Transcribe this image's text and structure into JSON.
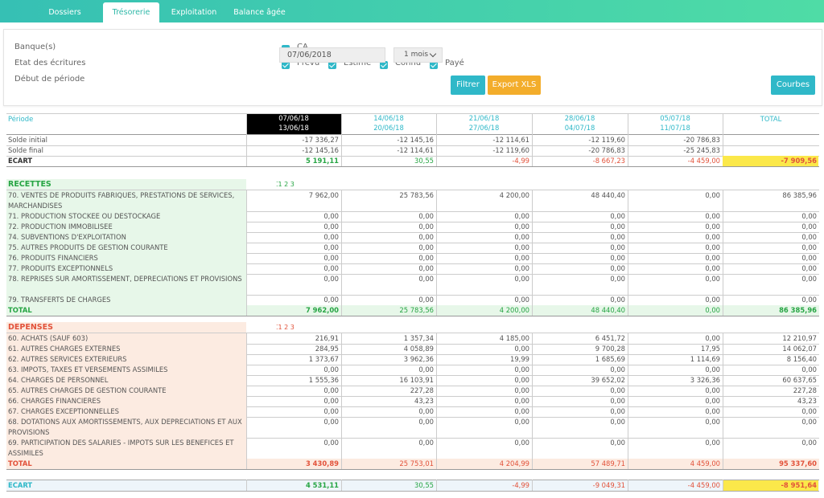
{
  "tabs": [
    {
      "label": "Dossiers",
      "active": false
    },
    {
      "label": "Trésorerie",
      "active": true
    },
    {
      "label": "Exploitation",
      "active": false
    },
    {
      "label": "Balance âgée",
      "active": false
    }
  ],
  "filters": {
    "banks_label": "Banque(s)",
    "bank": "CA",
    "states_label": "Etat des écritures",
    "states": [
      "Prévu",
      "Estimé",
      "Connu",
      "Payé"
    ],
    "start_label": "Début de période",
    "start_value": "07/06/2018",
    "duration_value": "1 mois",
    "filter_button": "Filtrer",
    "export_button": "Export XLS",
    "curves_button": "Courbes"
  },
  "colors": {
    "teal": "#2fb8c8",
    "green": "#27a544",
    "red": "#e2523a",
    "orange": "#f3ad2b",
    "highlight": "#fbe84a",
    "recettes_bg": "#e7f7e9",
    "depenses_bg": "#fcebe1"
  },
  "table": {
    "period_label": "Période",
    "periods": [
      [
        "07/06/18",
        "13/06/18"
      ],
      [
        "14/06/18",
        "20/06/18"
      ],
      [
        "21/06/18",
        "27/06/18"
      ],
      [
        "28/06/18",
        "04/07/18"
      ],
      [
        "05/07/18",
        "11/07/18"
      ]
    ],
    "total_label": "TOTAL",
    "solde_initial": {
      "label": "Solde initial",
      "values": [
        "-17 336,27",
        "-12 145,16",
        "-12 114,61",
        "-12 119,60",
        "-20 786,83",
        ""
      ]
    },
    "solde_final": {
      "label": "Solde final",
      "values": [
        "-12 145,16",
        "-12 114,61",
        "-12 119,60",
        "-20 786,83",
        "-25 245,83",
        ""
      ]
    },
    "ecart_top": {
      "label": "ECART",
      "values": [
        "5 191,11",
        "30,55",
        "-4,99",
        "-8 667,23",
        "-4 459,00",
        "-7 909,56"
      ]
    },
    "recettes": {
      "title": "RECETTES",
      "icons": "1 2 3",
      "rows": [
        {
          "label": "70. VENTES DE PRODUITS FABRIQUES, PRESTATIONS DE SERVICES, MARCHANDISES",
          "values": [
            "7 962,00",
            "25 783,56",
            "4 200,00",
            "48 440,40",
            "0,00",
            "86 385,96"
          ]
        },
        {
          "label": "71. PRODUCTION STOCKEE OU DESTOCKAGE",
          "values": [
            "0,00",
            "0,00",
            "0,00",
            "0,00",
            "0,00",
            "0,00"
          ]
        },
        {
          "label": "72. PRODUCTION IMMOBILISEE",
          "values": [
            "0,00",
            "0,00",
            "0,00",
            "0,00",
            "0,00",
            "0,00"
          ]
        },
        {
          "label": "74. SUBVENTIONS D'EXPLOITATION",
          "values": [
            "0,00",
            "0,00",
            "0,00",
            "0,00",
            "0,00",
            "0,00"
          ]
        },
        {
          "label": "75. AUTRES PRODUITS DE GESTION COURANTE",
          "values": [
            "0,00",
            "0,00",
            "0,00",
            "0,00",
            "0,00",
            "0,00"
          ]
        },
        {
          "label": "76. PRODUITS FINANCIERS",
          "values": [
            "0,00",
            "0,00",
            "0,00",
            "0,00",
            "0,00",
            "0,00"
          ]
        },
        {
          "label": "77. PRODUITS EXCEPTIONNELS",
          "values": [
            "0,00",
            "0,00",
            "0,00",
            "0,00",
            "0,00",
            "0,00"
          ]
        },
        {
          "label": "78. REPRISES SUR AMORTISSEMENT, DEPRECIATIONS ET PROVISIONS",
          "values": [
            "0,00",
            "0,00",
            "0,00",
            "0,00",
            "0,00",
            "0,00"
          ]
        },
        {
          "label": "79. TRANSFERTS DE CHARGES",
          "values": [
            "0,00",
            "0,00",
            "0,00",
            "0,00",
            "0,00",
            "0,00"
          ]
        }
      ],
      "total": {
        "label": "TOTAL",
        "values": [
          "7 962,00",
          "25 783,56",
          "4 200,00",
          "48 440,40",
          "0,00",
          "86 385,96"
        ]
      }
    },
    "depenses": {
      "title": "DEPENSES",
      "icons": "1 2 3",
      "rows": [
        {
          "label": "60. ACHATS (SAUF 603)",
          "values": [
            "216,91",
            "1 357,34",
            "4 185,00",
            "6 451,72",
            "0,00",
            "12 210,97"
          ]
        },
        {
          "label": "61. AUTRES CHARGES EXTERNES",
          "values": [
            "284,95",
            "4 058,89",
            "0,00",
            "9 700,28",
            "17,95",
            "14 062,07"
          ]
        },
        {
          "label": "62. AUTRES SERVICES EXTERIEURS",
          "values": [
            "1 373,67",
            "3 962,36",
            "19,99",
            "1 685,69",
            "1 114,69",
            "8 156,40"
          ]
        },
        {
          "label": "63. IMPOTS, TAXES ET VERSEMENTS ASSIMILES",
          "values": [
            "0,00",
            "0,00",
            "0,00",
            "0,00",
            "0,00",
            "0,00"
          ]
        },
        {
          "label": "64. CHARGES DE PERSONNEL",
          "values": [
            "1 555,36",
            "16 103,91",
            "0,00",
            "39 652,02",
            "3 326,36",
            "60 637,65"
          ]
        },
        {
          "label": "65. AUTRES CHARGES DE GESTION COURANTE",
          "values": [
            "0,00",
            "227,28",
            "0,00",
            "0,00",
            "0,00",
            "227,28"
          ]
        },
        {
          "label": "66. CHARGES FINANCIERES",
          "values": [
            "0,00",
            "43,23",
            "0,00",
            "0,00",
            "0,00",
            "43,23"
          ]
        },
        {
          "label": "67. CHARGES EXCEPTIONNELLES",
          "values": [
            "0,00",
            "0,00",
            "0,00",
            "0,00",
            "0,00",
            "0,00"
          ]
        },
        {
          "label": "68. DOTATIONS AUX AMORTISSEMENTS, AUX DEPRECIATIONS ET AUX PROVISIONS",
          "values": [
            "0,00",
            "0,00",
            "0,00",
            "0,00",
            "0,00",
            "0,00"
          ]
        },
        {
          "label": "69. PARTICIPATION DES SALARIES - IMPOTS SUR LES BENEFICES ET ASSIMILES",
          "values": [
            "0,00",
            "0,00",
            "0,00",
            "0,00",
            "0,00",
            "0,00"
          ]
        }
      ],
      "total": {
        "label": "TOTAL",
        "values": [
          "3 430,89",
          "25 753,01",
          "4 204,99",
          "57 489,71",
          "4 459,00",
          "95 337,60"
        ]
      }
    },
    "ecart_bottom": {
      "label": "ECART",
      "values": [
        "4 531,11",
        "30,55",
        "-4,99",
        "-9 049,31",
        "-4 459,00",
        "-8 951,64"
      ]
    }
  }
}
